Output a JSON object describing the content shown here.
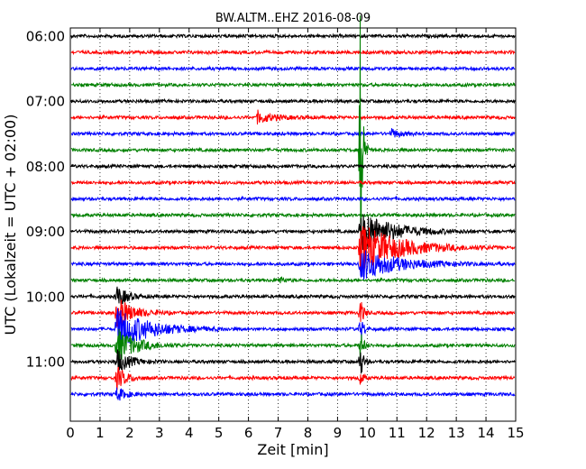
{
  "chart_data": {
    "type": "line",
    "title": "BW.ALTM..EHZ 2016-08-09",
    "xlabel": "Zeit  [min]",
    "ylabel": "UTC (Lokalzeit = UTC + 02:00)",
    "xlim": [
      0,
      15
    ],
    "x_ticks": [
      "0",
      "1",
      "2",
      "3",
      "4",
      "5",
      "6",
      "7",
      "8",
      "9",
      "10",
      "11",
      "12",
      "13",
      "14",
      "15"
    ],
    "y_tick_labels": [
      "06:00",
      "07:00",
      "08:00",
      "09:00",
      "10:00",
      "11:00"
    ],
    "grid": "vertical dotted",
    "trace_interval_minutes": 15,
    "trace_colors": [
      "#000000",
      "#ff0000",
      "#0000ff",
      "#008000"
    ],
    "series": [
      {
        "start": "06:00",
        "events": []
      },
      {
        "start": "06:15",
        "events": []
      },
      {
        "start": "06:30",
        "events": []
      },
      {
        "start": "06:45",
        "events": []
      },
      {
        "start": "07:00",
        "events": []
      },
      {
        "start": "07:15",
        "events": [
          {
            "t": 6.3,
            "amp": 7,
            "dur": 0.5
          }
        ]
      },
      {
        "start": "07:30",
        "events": [
          {
            "t": 10.8,
            "amp": 5,
            "dur": 0.3
          }
        ]
      },
      {
        "start": "07:45",
        "events": [
          {
            "t": 9.75,
            "amp": 190,
            "dur": 0.08
          }
        ]
      },
      {
        "start": "08:00",
        "events": []
      },
      {
        "start": "08:15",
        "events": []
      },
      {
        "start": "08:30",
        "events": []
      },
      {
        "start": "08:45",
        "events": []
      },
      {
        "start": "09:00",
        "events": [
          {
            "t": 9.75,
            "amp": 24,
            "dur": 1.0
          }
        ]
      },
      {
        "start": "09:15",
        "events": [
          {
            "t": 9.75,
            "amp": 28,
            "dur": 1.2
          }
        ]
      },
      {
        "start": "09:30",
        "events": [
          {
            "t": 9.75,
            "amp": 18,
            "dur": 1.2
          }
        ]
      },
      {
        "start": "09:45",
        "events": [
          {
            "t": 7.0,
            "amp": 4,
            "dur": 0.2
          }
        ]
      },
      {
        "start": "10:00",
        "events": [
          {
            "t": 1.55,
            "amp": 14,
            "dur": 0.3
          }
        ]
      },
      {
        "start": "10:15",
        "events": [
          {
            "t": 1.55,
            "amp": 18,
            "dur": 0.5
          },
          {
            "t": 9.75,
            "amp": 20,
            "dur": 0.1
          }
        ]
      },
      {
        "start": "10:30",
        "events": [
          {
            "t": 1.55,
            "amp": 24,
            "dur": 1.0
          },
          {
            "t": 9.75,
            "amp": 20,
            "dur": 0.1
          }
        ]
      },
      {
        "start": "10:45",
        "events": [
          {
            "t": 1.55,
            "amp": 20,
            "dur": 0.6
          },
          {
            "t": 9.75,
            "amp": 20,
            "dur": 0.1
          }
        ]
      },
      {
        "start": "11:00",
        "events": [
          {
            "t": 1.55,
            "amp": 14,
            "dur": 0.4
          },
          {
            "t": 9.75,
            "amp": 22,
            "dur": 0.1
          }
        ]
      },
      {
        "start": "11:15",
        "events": [
          {
            "t": 1.55,
            "amp": 14,
            "dur": 0.3
          },
          {
            "t": 9.75,
            "amp": 10,
            "dur": 0.1
          }
        ]
      },
      {
        "start": "11:30",
        "events": [
          {
            "t": 1.55,
            "amp": 8,
            "dur": 0.3
          }
        ]
      }
    ]
  }
}
